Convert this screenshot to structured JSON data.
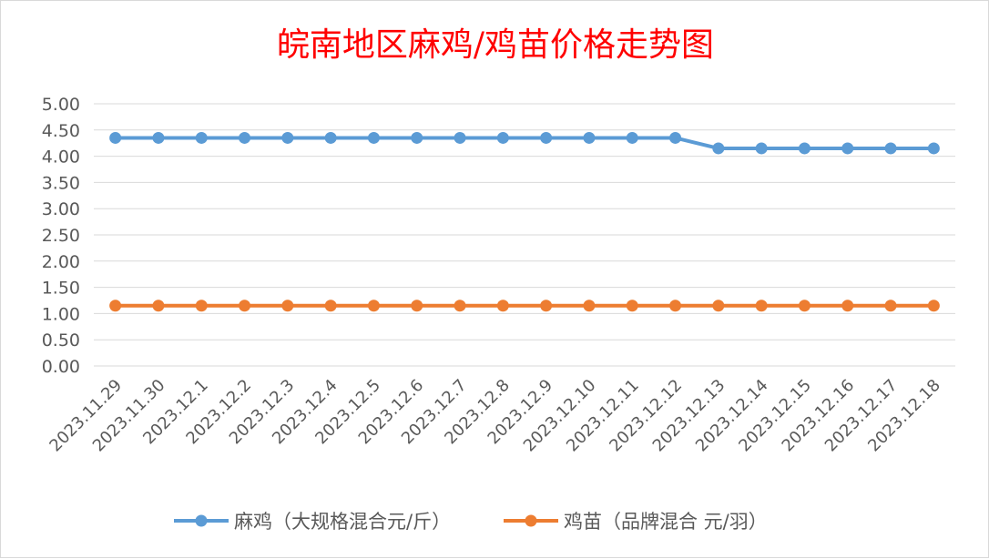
{
  "chart_data": {
    "type": "line",
    "title": "皖南地区麻鸡/鸡苗价格走势图",
    "title_color": "#ff0000",
    "categories": [
      "2023.11.29",
      "2023.11.30",
      "2023.12.1",
      "2023.12.2",
      "2023.12.3",
      "2023.12.4",
      "2023.12.5",
      "2023.12.6",
      "2023.12.7",
      "2023.12.8",
      "2023.12.9",
      "2023.12.10",
      "2023.12.11",
      "2023.12.12",
      "2023.12.13",
      "2023.12.14",
      "2023.12.15",
      "2023.12.16",
      "2023.12.17",
      "2023.12.18"
    ],
    "y_ticks": [
      "0.00",
      "0.50",
      "1.00",
      "1.50",
      "2.00",
      "2.50",
      "3.00",
      "3.50",
      "4.00",
      "4.50",
      "5.00"
    ],
    "ylim": [
      0,
      5
    ],
    "grid": true,
    "legend_position": "bottom",
    "series": [
      {
        "name": "麻鸡（大规格混合元/斤）",
        "color": "#5b9bd5",
        "values": [
          4.35,
          4.35,
          4.35,
          4.35,
          4.35,
          4.35,
          4.35,
          4.35,
          4.35,
          4.35,
          4.35,
          4.35,
          4.35,
          4.35,
          4.15,
          4.15,
          4.15,
          4.15,
          4.15,
          4.15
        ]
      },
      {
        "name": "鸡苗（品牌混合 元/羽）",
        "color": "#ed7d31",
        "values": [
          1.15,
          1.15,
          1.15,
          1.15,
          1.15,
          1.15,
          1.15,
          1.15,
          1.15,
          1.15,
          1.15,
          1.15,
          1.15,
          1.15,
          1.15,
          1.15,
          1.15,
          1.15,
          1.15,
          1.15
        ]
      }
    ]
  }
}
